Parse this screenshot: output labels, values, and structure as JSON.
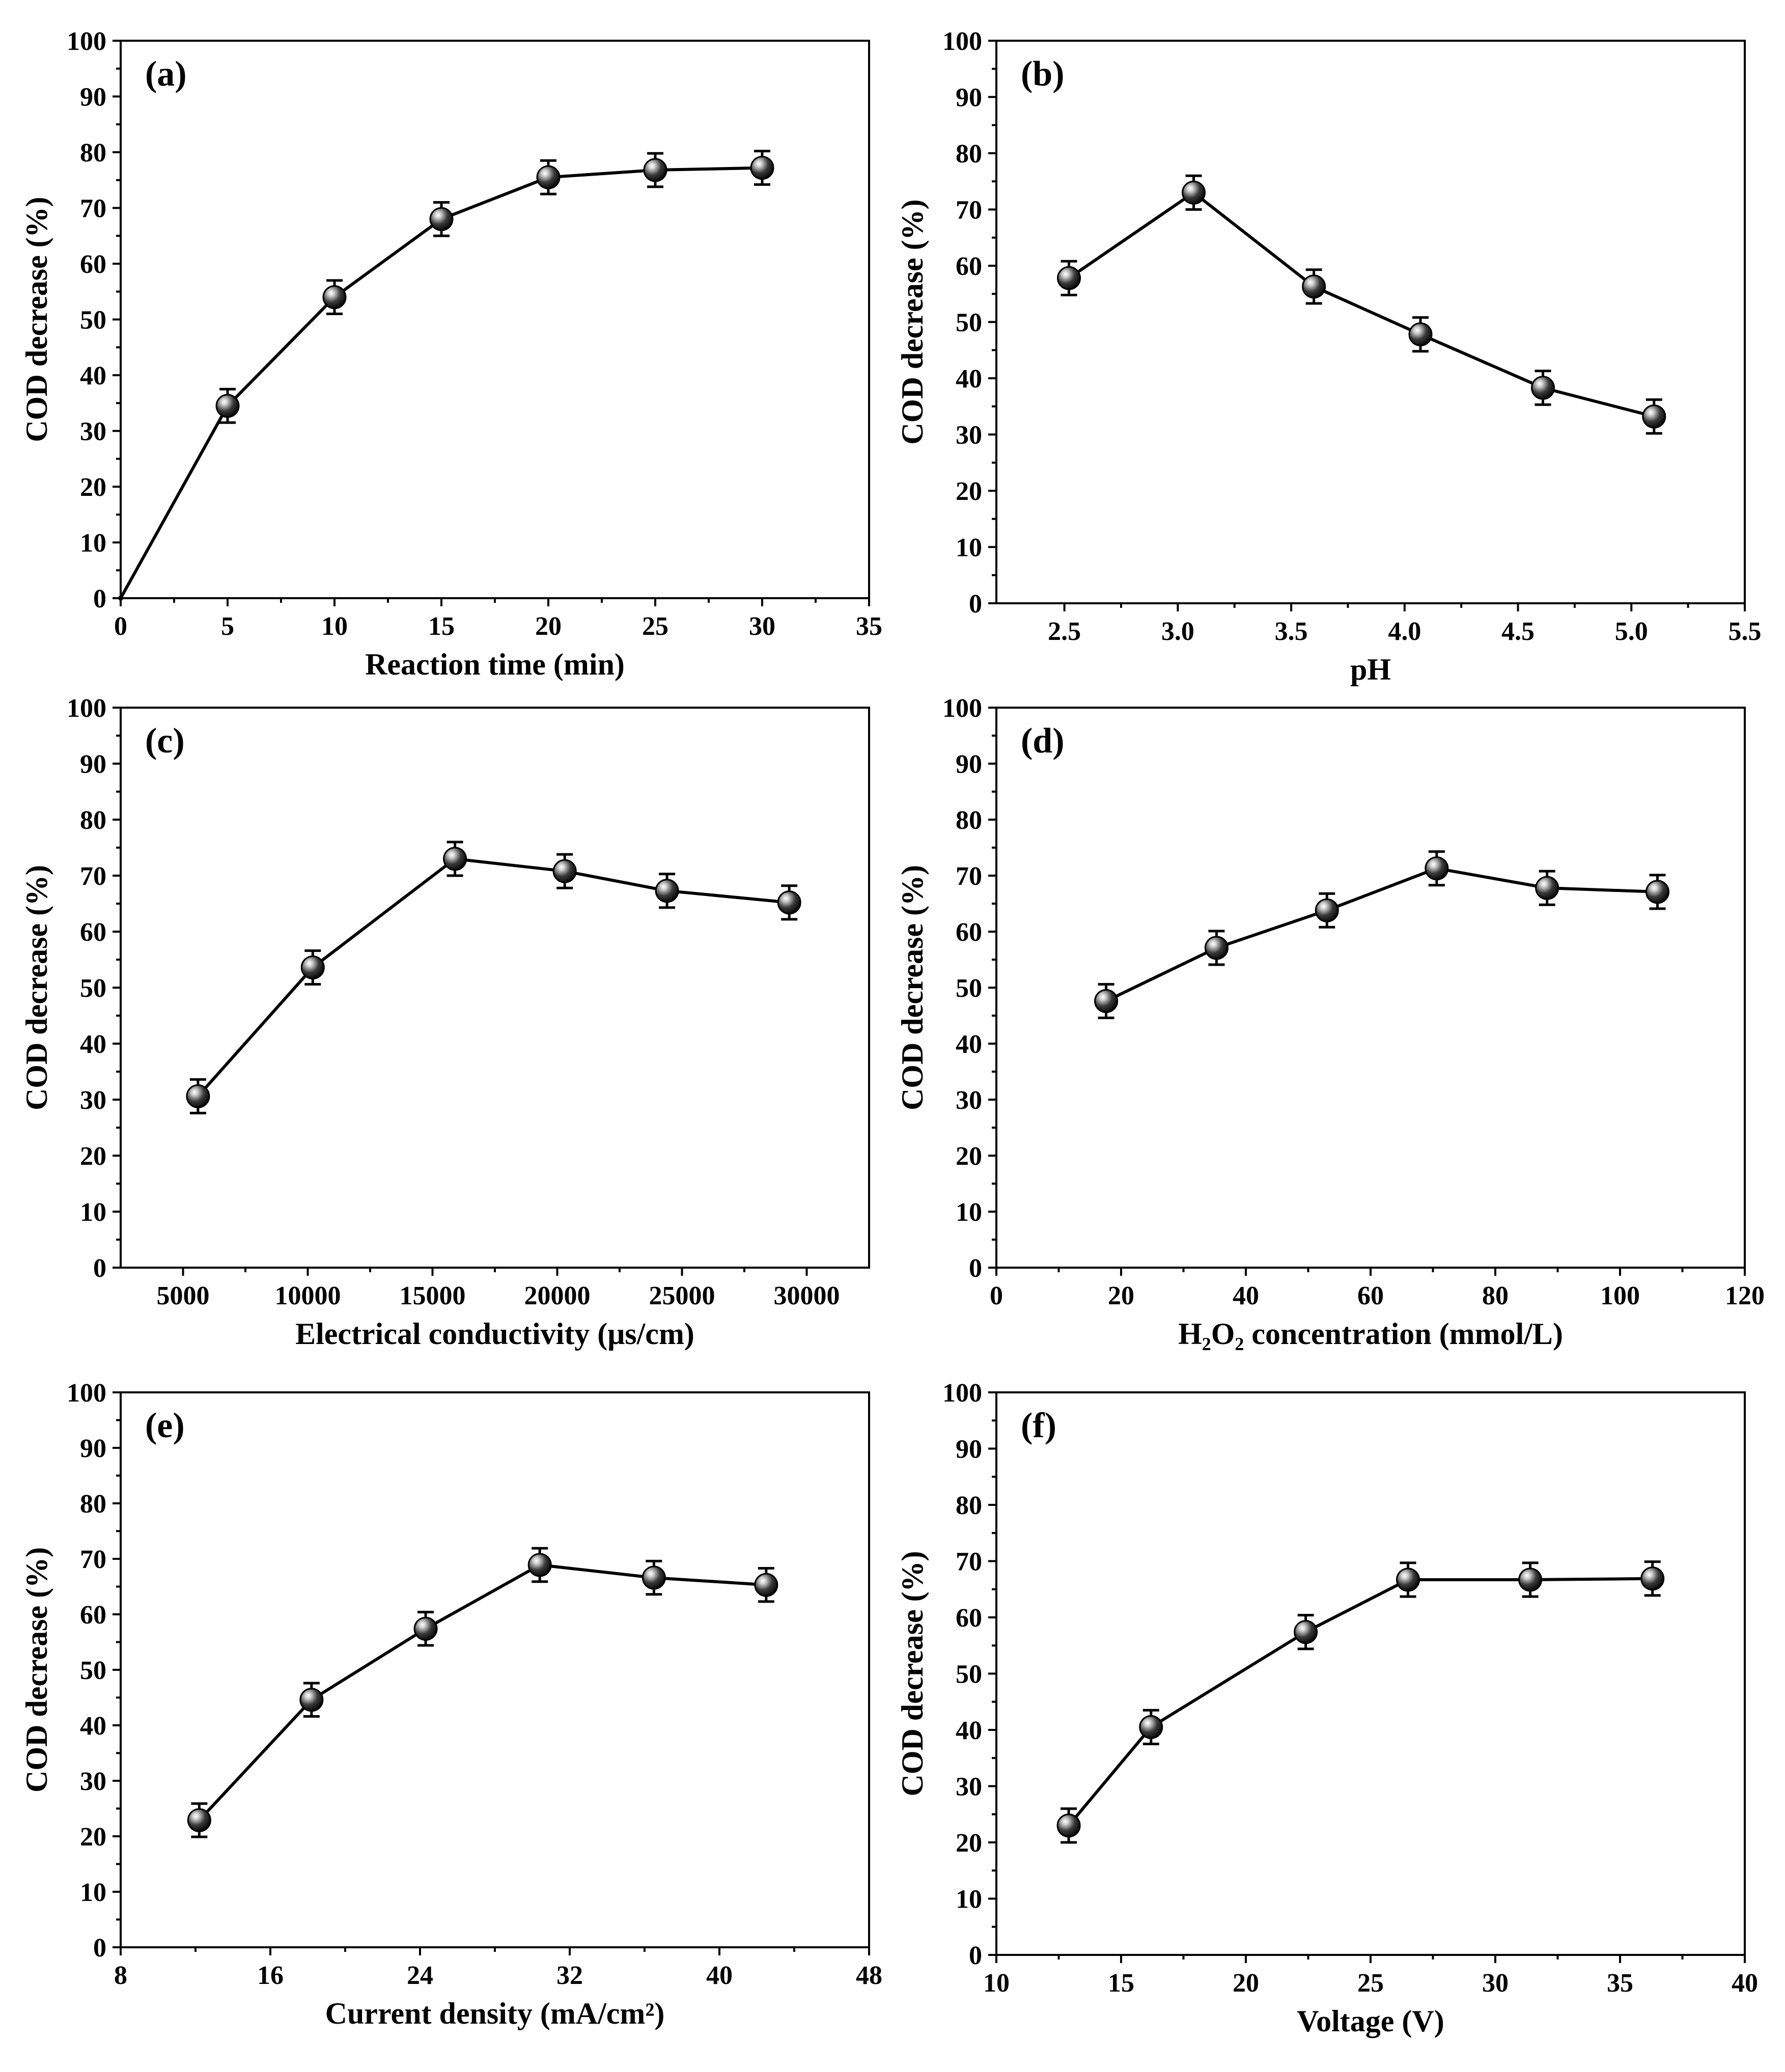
{
  "chart_data": [
    {
      "type": "line",
      "panel_label": "(a)",
      "title": "",
      "xlabel": "Reaction time (min)",
      "ylabel": "COD decrease (%)",
      "xlim": [
        0,
        35
      ],
      "ylim": [
        0,
        100
      ],
      "xticks": [
        0,
        5,
        10,
        15,
        20,
        25,
        30,
        35
      ],
      "xtick_labels": [
        "0",
        "5",
        "10",
        "15",
        "20",
        "25",
        "30",
        "35"
      ],
      "yticks": [
        0,
        10,
        20,
        30,
        40,
        50,
        60,
        70,
        80,
        90,
        100
      ],
      "ytick_labels": [
        "0",
        "10",
        "20",
        "30",
        "40",
        "50",
        "60",
        "70",
        "80",
        "90",
        "100"
      ],
      "x": [
        0,
        5,
        10,
        15,
        20,
        25,
        30
      ],
      "y": [
        0,
        34.5,
        54,
        68,
        75.5,
        76.8,
        77.2
      ],
      "error": [
        0,
        3,
        3,
        3,
        3,
        3,
        3
      ],
      "markers": [
        false,
        true,
        true,
        true,
        true,
        true,
        true
      ]
    },
    {
      "type": "line",
      "panel_label": "(b)",
      "title": "",
      "xlabel": "pH",
      "ylabel": "COD decrease (%)",
      "xlim": [
        2.2,
        5.5
      ],
      "ylim": [
        0,
        100
      ],
      "xticks": [
        2.5,
        3.0,
        3.5,
        4.0,
        4.5,
        5.0,
        5.5
      ],
      "xtick_labels": [
        "2.5",
        "3.0",
        "3.5",
        "4.0",
        "4.5",
        "5.0",
        "5.5"
      ],
      "yticks": [
        0,
        10,
        20,
        30,
        40,
        50,
        60,
        70,
        80,
        90,
        100
      ],
      "ytick_labels": [
        "0",
        "10",
        "20",
        "30",
        "40",
        "50",
        "60",
        "70",
        "80",
        "90",
        "100"
      ],
      "x": [
        2.52,
        3.07,
        3.6,
        4.07,
        4.61,
        5.1
      ],
      "y": [
        57.8,
        73,
        56.3,
        47.8,
        38.3,
        33.2
      ],
      "error": [
        3,
        3,
        3,
        3,
        3,
        3
      ],
      "markers": [
        true,
        true,
        true,
        true,
        true,
        true
      ]
    },
    {
      "type": "line",
      "panel_label": "(c)",
      "title": "",
      "xlabel": "Electrical conductivity (μs/cm)",
      "ylabel": "COD decrease (%)",
      "xlim": [
        2500,
        32500
      ],
      "ylim": [
        0,
        100
      ],
      "xticks": [
        5000,
        10000,
        15000,
        20000,
        25000,
        30000
      ],
      "xtick_labels": [
        "5000",
        "10000",
        "15000",
        "20000",
        "25000",
        "30000"
      ],
      "yticks": [
        0,
        10,
        20,
        30,
        40,
        50,
        60,
        70,
        80,
        90,
        100
      ],
      "ytick_labels": [
        "0",
        "10",
        "20",
        "30",
        "40",
        "50",
        "60",
        "70",
        "80",
        "90",
        "100"
      ],
      "x": [
        5600,
        10200,
        15900,
        20300,
        24400,
        29300
      ],
      "y": [
        30.6,
        53.6,
        73,
        70.8,
        67.3,
        65.2
      ],
      "error": [
        3,
        3,
        3,
        3,
        3,
        3
      ],
      "markers": [
        true,
        true,
        true,
        true,
        true,
        true
      ]
    },
    {
      "type": "line",
      "panel_label": "(d)",
      "title": "",
      "xlabel": "H₂O₂ concentration (mmol/L)",
      "ylabel": "COD decrease (%)",
      "xlim": [
        0,
        120
      ],
      "ylim": [
        0,
        100
      ],
      "xticks": [
        0,
        20,
        40,
        60,
        80,
        100,
        120
      ],
      "xtick_labels": [
        "0",
        "20",
        "40",
        "60",
        "80",
        "100",
        "120"
      ],
      "yticks": [
        0,
        10,
        20,
        30,
        40,
        50,
        60,
        70,
        80,
        90,
        100
      ],
      "ytick_labels": [
        "0",
        "10",
        "20",
        "30",
        "40",
        "50",
        "60",
        "70",
        "80",
        "90",
        "100"
      ],
      "x": [
        17.6,
        35.3,
        53,
        70.6,
        88.3,
        106
      ],
      "y": [
        47.6,
        57.1,
        63.8,
        71.3,
        67.8,
        67.1
      ],
      "error": [
        3,
        3,
        3,
        3,
        3,
        3
      ],
      "markers": [
        true,
        true,
        true,
        true,
        true,
        true
      ]
    },
    {
      "type": "line",
      "panel_label": "(e)",
      "title": "",
      "xlabel": "Current density (mA/cm²)",
      "ylabel": "COD decrease (%)",
      "xlim": [
        8,
        48
      ],
      "ylim": [
        0,
        100
      ],
      "xticks": [
        8,
        16,
        24,
        32,
        40,
        48
      ],
      "xtick_labels": [
        "8",
        "16",
        "24",
        "32",
        "40",
        "48"
      ],
      "yticks": [
        0,
        10,
        20,
        30,
        40,
        50,
        60,
        70,
        80,
        90,
        100
      ],
      "ytick_labels": [
        "0",
        "10",
        "20",
        "30",
        "40",
        "50",
        "60",
        "70",
        "80",
        "90",
        "100"
      ],
      "x": [
        12.2,
        18.2,
        24.3,
        30.4,
        36.5,
        42.5
      ],
      "y": [
        22.9,
        44.6,
        57.4,
        68.9,
        66.6,
        65.3
      ],
      "error": [
        3,
        3,
        3,
        3,
        3,
        3
      ],
      "markers": [
        true,
        true,
        true,
        true,
        true,
        true
      ]
    },
    {
      "type": "line",
      "panel_label": "(f)",
      "title": "",
      "xlabel": "Voltage (V)",
      "ylabel": "COD decrease (%)",
      "xlim": [
        10,
        40
      ],
      "ylim": [
        0,
        100
      ],
      "xticks": [
        10,
        15,
        20,
        25,
        30,
        35,
        40
      ],
      "xtick_labels": [
        "10",
        "15",
        "20",
        "25",
        "30",
        "35",
        "40"
      ],
      "yticks": [
        0,
        10,
        20,
        30,
        40,
        50,
        60,
        70,
        80,
        90,
        100
      ],
      "ytick_labels": [
        "0",
        "10",
        "20",
        "30",
        "40",
        "50",
        "60",
        "70",
        "80",
        "90",
        "100"
      ],
      "x": [
        12.9,
        16.2,
        22.4,
        26.5,
        31.4,
        36.3
      ],
      "y": [
        23,
        40.5,
        57.4,
        66.7,
        66.7,
        66.9
      ],
      "error": [
        3,
        3,
        3,
        3,
        3,
        3
      ],
      "markers": [
        true,
        true,
        true,
        true,
        true,
        true
      ]
    }
  ]
}
